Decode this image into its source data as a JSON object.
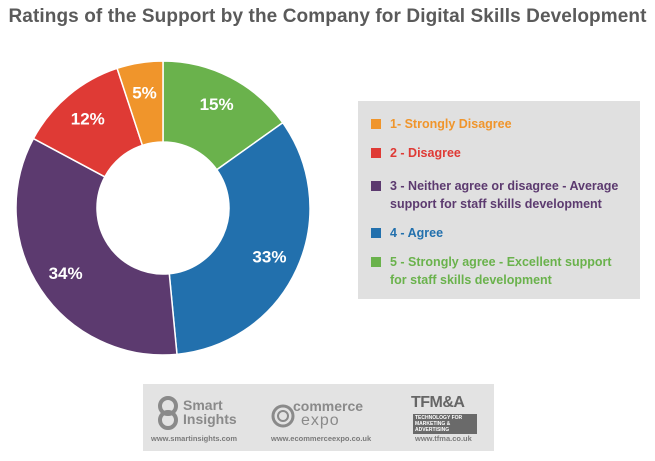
{
  "chart_data": {
    "type": "pie",
    "title": "Ratings of the Support by the Company for Digital Skills Development",
    "slices": [
      {
        "label": "1- Strongly Disagree",
        "value": 5,
        "display": "5%",
        "color": "#f0952b"
      },
      {
        "label": "2 - Disagree",
        "value": 12,
        "display": "12%",
        "color": "#df3a35"
      },
      {
        "label": "3 - Neither agree or disagree - Average support for staff skills development",
        "value": 34,
        "display": "34%",
        "color": "#5c3a6f"
      },
      {
        "label": "4 - Agree",
        "value": 33,
        "display": "33%",
        "color": "#2270ad"
      },
      {
        "label": "5 - Strongly agree - Excellent support for staff skills development",
        "value": 15,
        "display": "15%",
        "color": "#6ab24c"
      }
    ],
    "slice_order_clockwise_from_top": [
      4,
      3,
      2,
      1,
      0
    ],
    "donut": true,
    "legend_placement": "right"
  },
  "footer": {
    "smart_insights": {
      "line1": "Smart",
      "line2": "Insights",
      "url": "www.smartinsights.com"
    },
    "commerce_expo": {
      "line1": "commerce",
      "line2": "expo",
      "url": "www.ecommerceexpo.co.uk"
    },
    "tfma": {
      "name": "TFM&A",
      "tagline": "TECHNOLOGY FOR MARKETING & ADVERTISING",
      "url": "www.tfma.co.uk"
    }
  }
}
